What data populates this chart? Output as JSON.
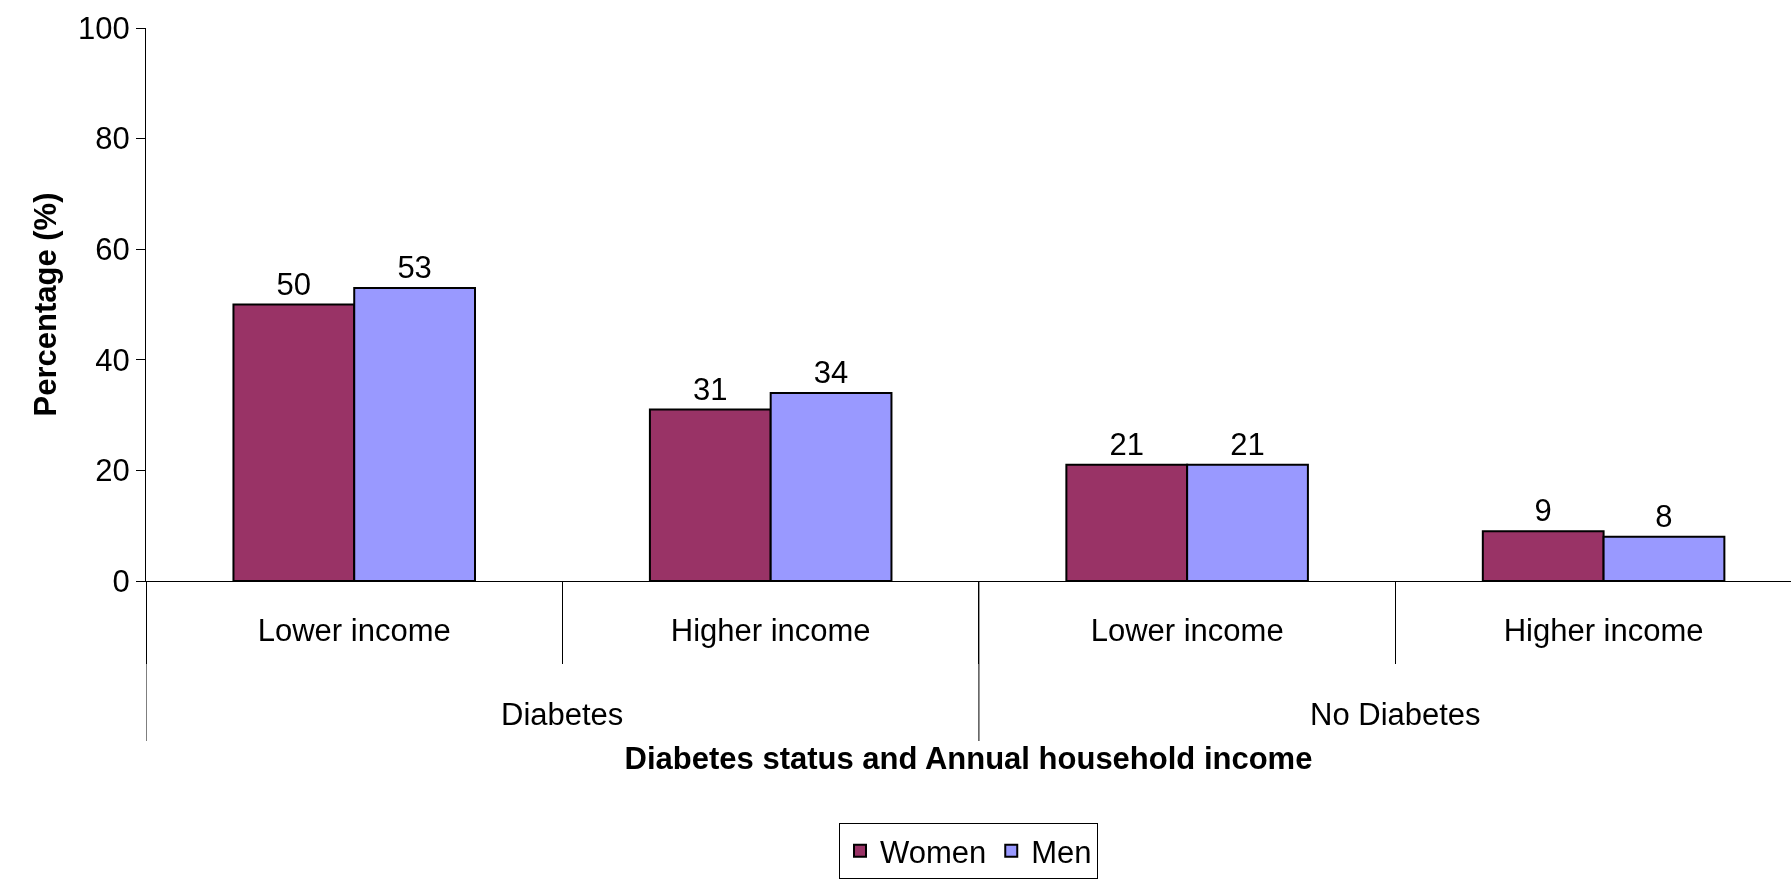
{
  "chart_data": {
    "type": "bar",
    "xlabel": "Diabetes status and Annual household income",
    "ylabel": "Percentage (%)",
    "categories": [
      "Lower income",
      "Higher income",
      "Lower income",
      "Higher income"
    ],
    "annotations": [
      "Diabetes",
      "No Diabetes"
    ],
    "series": [
      {
        "name": "Women",
        "color": "#993366",
        "values": [
          50,
          31,
          21,
          9
        ]
      },
      {
        "name": "Men",
        "color": "#9999ff",
        "values": [
          53,
          34,
          21,
          8
        ]
      }
    ],
    "ylim": [
      0,
      100
    ],
    "yticks": [
      0,
      20,
      40,
      60,
      80,
      100
    ],
    "grid": false,
    "legend": "bottom",
    "data_labels": true
  }
}
